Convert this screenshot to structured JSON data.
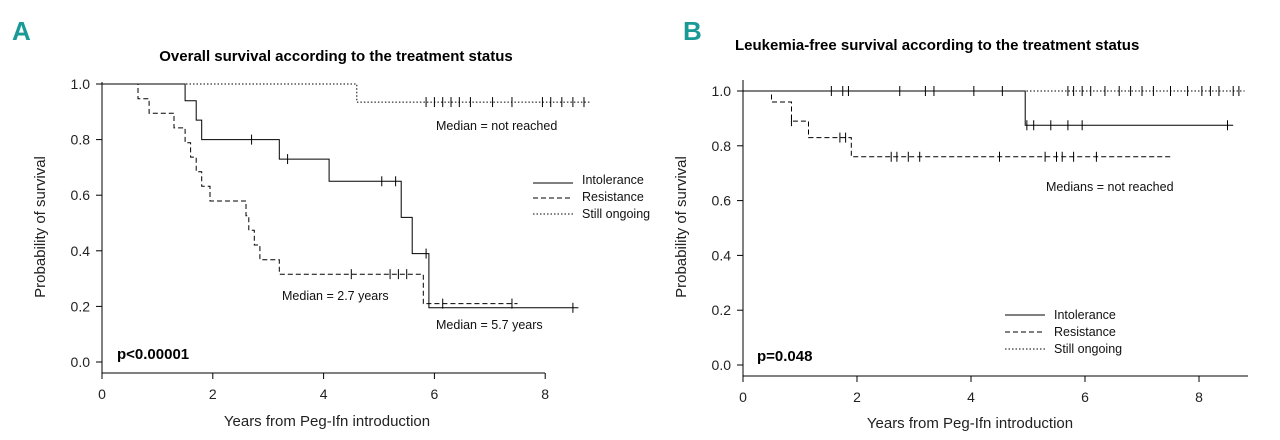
{
  "chart_data": [
    {
      "type": "line",
      "panel_label": "A",
      "panel_color": "#1a9a96",
      "title": "Overall survival according to the treatment status",
      "xlabel": "Years from Peg-Ifn introduction",
      "ylabel": "Probability of survival",
      "xlim": [
        0,
        9
      ],
      "ylim": [
        0,
        1.0
      ],
      "x_ticks": [
        0,
        2,
        4,
        6,
        8
      ],
      "y_ticks": [
        0.0,
        0.2,
        0.4,
        0.6,
        0.8,
        1.0
      ],
      "y_tick_labels": [
        "0.0",
        "0.2",
        "0.4",
        "0.6",
        "0.8",
        "1.0"
      ],
      "series": [
        {
          "name": "Intolerance",
          "style": "solid",
          "steps": [
            [
              0,
              1.0
            ],
            [
              1.5,
              0.94
            ],
            [
              1.7,
              0.87
            ],
            [
              1.8,
              0.8
            ],
            [
              3.2,
              0.73
            ],
            [
              4.1,
              0.65
            ],
            [
              5.4,
              0.52
            ],
            [
              5.6,
              0.39
            ],
            [
              5.9,
              0.195
            ]
          ],
          "end_x": 8.6,
          "censored": [
            2.7,
            3.35,
            5.05,
            5.3,
            5.85,
            8.5
          ]
        },
        {
          "name": "Resistance",
          "style": "dashed",
          "steps": [
            [
              0,
              1.0
            ],
            [
              0.65,
              0.947
            ],
            [
              0.85,
              0.895
            ],
            [
              1.3,
              0.842
            ],
            [
              1.5,
              0.789
            ],
            [
              1.6,
              0.737
            ],
            [
              1.7,
              0.684
            ],
            [
              1.8,
              0.632
            ],
            [
              1.95,
              0.579
            ],
            [
              2.6,
              0.526
            ],
            [
              2.65,
              0.474
            ],
            [
              2.75,
              0.421
            ],
            [
              2.85,
              0.368
            ],
            [
              3.2,
              0.316
            ],
            [
              5.8,
              0.21
            ]
          ],
          "end_x": 7.5,
          "censored": [
            4.5,
            5.2,
            5.35,
            5.5,
            6.15,
            7.4
          ]
        },
        {
          "name": "Still ongoing",
          "style": "dotted",
          "steps": [
            [
              0,
              1.0
            ],
            [
              4.6,
              0.935
            ]
          ],
          "end_x": 8.8,
          "censored": [
            5.85,
            6.0,
            6.15,
            6.3,
            6.45,
            6.65,
            7.05,
            7.4,
            7.95,
            8.1,
            8.3,
            8.5,
            8.7
          ]
        }
      ],
      "annotations": [
        "Median = not reached",
        "Median = 2.7 years",
        "Median = 5.7 years"
      ],
      "p_value": "p<0.00001",
      "legend_position": "right-middle"
    },
    {
      "type": "line",
      "panel_label": "B",
      "panel_color": "#1a9a96",
      "title": "Leukemia-free survival according to the treatment status",
      "xlabel": "Years from Peg-Ifn introduction",
      "ylabel": "Probability of survival",
      "xlim": [
        0,
        9
      ],
      "ylim": [
        0,
        1.0
      ],
      "x_ticks": [
        0,
        2,
        4,
        6,
        8
      ],
      "y_ticks": [
        0.0,
        0.2,
        0.4,
        0.6,
        0.8,
        1.0
      ],
      "y_tick_labels": [
        "0.0",
        "0.2",
        "0.4",
        "0.6",
        "0.8",
        "1.0"
      ],
      "series": [
        {
          "name": "Intolerance",
          "style": "solid",
          "steps": [
            [
              0,
              1.0
            ],
            [
              4.95,
              0.875
            ]
          ],
          "end_x": 8.6,
          "censored": [
            1.55,
            1.75,
            1.85,
            2.75,
            3.2,
            3.35,
            4.05,
            4.55,
            4.98,
            5.1,
            5.4,
            5.7,
            5.95,
            8.5
          ]
        },
        {
          "name": "Resistance",
          "style": "dashed",
          "steps": [
            [
              0,
              1.0
            ],
            [
              0.5,
              0.96
            ],
            [
              0.85,
              0.89
            ],
            [
              1.15,
              0.83
            ],
            [
              1.9,
              0.76
            ]
          ],
          "end_x": 7.5,
          "censored": [
            0.85,
            1.7,
            1.8,
            2.6,
            2.7,
            2.9,
            3.1,
            4.5,
            5.3,
            5.5,
            5.6,
            5.8,
            6.2
          ]
        },
        {
          "name": "Still ongoing",
          "style": "dotted",
          "steps": [
            [
              0,
              1.0
            ]
          ],
          "end_x": 8.8,
          "censored": [
            5.7,
            5.8,
            5.95,
            6.1,
            6.35,
            6.6,
            6.8,
            7.0,
            7.2,
            7.5,
            7.8,
            8.05,
            8.2,
            8.35,
            8.6,
            8.7
          ]
        }
      ],
      "annotations": [
        "Medians = not reached"
      ],
      "p_value": "p=0.048",
      "legend_position": "bottom-right"
    }
  ]
}
